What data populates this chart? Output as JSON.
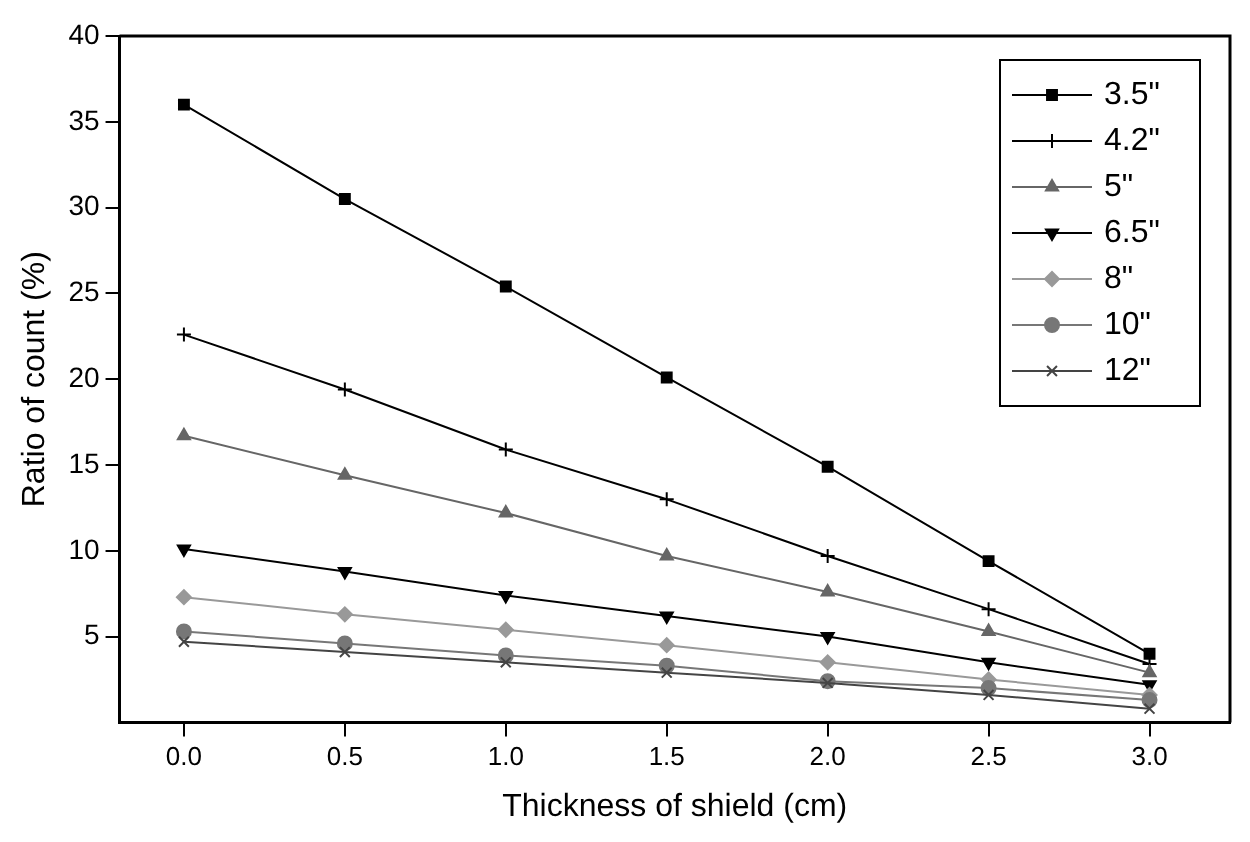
{
  "chart_data": {
    "type": "line",
    "xlabel": "Thickness of shield (cm)",
    "ylabel": "Ratio of count (%)",
    "x": [
      0,
      0.5,
      1,
      1.5,
      2,
      2.5,
      3
    ],
    "xlim": [
      -0.2,
      3.25
    ],
    "xticks": [
      {
        "value": 0,
        "label": "0.0"
      },
      {
        "value": 0.5,
        "label": "0.5"
      },
      {
        "value": 1,
        "label": "1.0"
      },
      {
        "value": 1.5,
        "label": "1.5"
      },
      {
        "value": 2,
        "label": "2.0"
      },
      {
        "value": 2.5,
        "label": "2.5"
      },
      {
        "value": 3,
        "label": "3.0"
      }
    ],
    "ylim": [
      0,
      40
    ],
    "yticks": [
      5,
      10,
      15,
      20,
      25,
      30,
      35,
      40
    ],
    "grid": false,
    "legend": "top right",
    "line_style": "solid",
    "series": [
      {
        "name": "3.5\"",
        "color": "#000000",
        "marker": "square",
        "values": [
          36,
          30.5,
          25.4,
          20.1,
          14.9,
          9.4,
          4.0
        ]
      },
      {
        "name": "4.2\"",
        "color": "#000000",
        "marker": "cross",
        "values": [
          22.6,
          19.4,
          15.9,
          13.0,
          9.7,
          6.6,
          3.4
        ]
      },
      {
        "name": "5\"",
        "color": "#666666",
        "marker": "triangle",
        "values": [
          16.7,
          14.4,
          12.2,
          9.7,
          7.6,
          5.3,
          2.9
        ]
      },
      {
        "name": "6.5\"",
        "color": "#000000",
        "marker": "triangle-down",
        "values": [
          10.1,
          8.8,
          7.4,
          6.2,
          5.0,
          3.5,
          2.2
        ]
      },
      {
        "name": "8\"",
        "color": "#999999",
        "marker": "diamond",
        "values": [
          7.3,
          6.3,
          5.4,
          4.5,
          3.5,
          2.5,
          1.6
        ]
      },
      {
        "name": "10\"",
        "color": "#777777",
        "marker": "circle",
        "values": [
          5.3,
          4.6,
          3.9,
          3.3,
          2.4,
          2.0,
          1.3
        ]
      },
      {
        "name": "12\"",
        "color": "#444444",
        "marker": "x",
        "values": [
          4.7,
          4.1,
          3.5,
          2.9,
          2.3,
          1.6,
          0.8
        ]
      }
    ]
  }
}
